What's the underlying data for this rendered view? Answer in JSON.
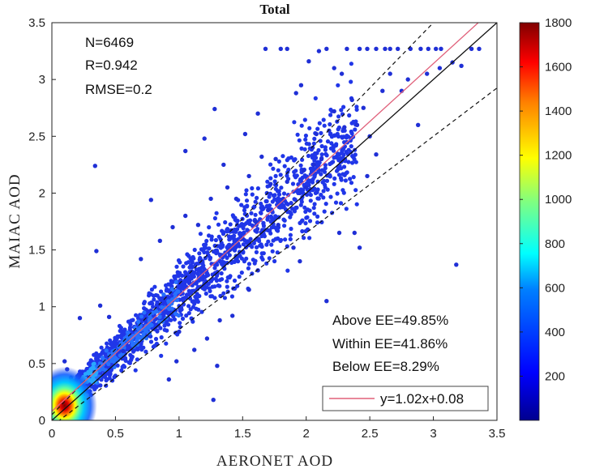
{
  "chart_data": {
    "type": "scatter",
    "title": "Total",
    "xlabel": "AERONET AOD",
    "ylabel": "MAIAC AOD",
    "xlim": [
      0,
      3.5
    ],
    "ylim": [
      0,
      3.5
    ],
    "xticks": [
      "0",
      "0.5",
      "1",
      "1.5",
      "2",
      "2.5",
      "3",
      "3.5"
    ],
    "yticks": [
      "0",
      "0.5",
      "1",
      "1.5",
      "2",
      "2.5",
      "3",
      "3.5"
    ],
    "grid": false,
    "stats": [
      "N=6469",
      "R=0.942",
      "RMSE=0.2"
    ],
    "ee_stats": [
      "Above EE=49.85%",
      "Within EE=41.86%",
      "Below EE=8.29%"
    ],
    "legend": {
      "placement": "bottom-right",
      "entries": [
        {
          "label": "y=1.02x+0.08",
          "color": "#e0607a"
        }
      ]
    },
    "fit": {
      "slope": 1.02,
      "intercept": 0.08,
      "color": "#e0607a"
    },
    "one_to_one": {
      "slope": 1,
      "intercept": 0,
      "color": "#111111"
    },
    "ee_envelope": {
      "abs": 0.05,
      "rel": 0.15,
      "style": "dashed"
    },
    "colorbar": {
      "min": 0,
      "max": 1800,
      "ticks": [
        "200",
        "400",
        "600",
        "800",
        "1000",
        "1200",
        "1400",
        "1600",
        "1800"
      ],
      "colors": [
        "#00008f",
        "#0000ff",
        "#0080ff",
        "#00ffff",
        "#80ff80",
        "#ffff00",
        "#ff8000",
        "#ff0000",
        "#800000"
      ]
    },
    "density_core": {
      "x": 0.1,
      "y": 0.13,
      "peak": 1800
    },
    "points": [
      [
        0.34,
        2.24
      ],
      [
        0.78,
        1.94
      ],
      [
        0.35,
        1.49
      ],
      [
        1.05,
        2.37
      ],
      [
        1.28,
        2.74
      ],
      [
        1.68,
        3.27
      ],
      [
        1.8,
        3.27
      ],
      [
        1.85,
        3.27
      ],
      [
        2.02,
        3.16
      ],
      [
        2.1,
        3.25
      ],
      [
        2.16,
        3.27
      ],
      [
        2.32,
        3.27
      ],
      [
        2.42,
        3.27
      ],
      [
        2.48,
        3.27
      ],
      [
        2.55,
        3.27
      ],
      [
        2.62,
        3.27
      ],
      [
        2.66,
        3.27
      ],
      [
        2.72,
        3.27
      ],
      [
        2.82,
        3.27
      ],
      [
        2.9,
        3.27
      ],
      [
        2.96,
        3.27
      ],
      [
        3.02,
        3.27
      ],
      [
        3.06,
        3.27
      ],
      [
        3.3,
        3.27
      ],
      [
        3.36,
        3.27
      ],
      [
        3.18,
        1.37
      ],
      [
        2.42,
        1.52
      ],
      [
        2.38,
        1.65
      ],
      [
        2.26,
        1.65
      ],
      [
        2.16,
        1.05
      ],
      [
        1.27,
        0.18
      ],
      [
        0.56,
        0.61
      ],
      [
        0.45,
        0.91
      ],
      [
        0.38,
        1.01
      ],
      [
        0.22,
        0.9
      ],
      [
        0.12,
        0.45
      ],
      [
        0.1,
        0.52
      ],
      [
        1.2,
        2.48
      ],
      [
        1.35,
        2.25
      ],
      [
        1.52,
        2.52
      ],
      [
        1.62,
        2.7
      ],
      [
        1.76,
        2.3
      ],
      [
        1.92,
        2.88
      ],
      [
        1.96,
        2.95
      ],
      [
        2.08,
        2.52
      ],
      [
        2.22,
        2.72
      ],
      [
        2.3,
        2.58
      ],
      [
        2.36,
        2.82
      ],
      [
        2.5,
        2.5
      ],
      [
        2.6,
        2.9
      ],
      [
        2.66,
        3.05
      ],
      [
        2.75,
        2.9
      ],
      [
        2.8,
        3.0
      ],
      [
        2.88,
        2.6
      ],
      [
        2.95,
        3.05
      ],
      [
        3.05,
        3.1
      ],
      [
        3.15,
        3.15
      ],
      [
        3.22,
        3.12
      ],
      [
        2.22,
        3.1
      ],
      [
        2.28,
        3.05
      ],
      [
        2.06,
        2.25
      ],
      [
        2.48,
        2.15
      ],
      [
        2.55,
        2.34
      ],
      [
        1.78,
        1.72
      ],
      [
        1.9,
        1.52
      ],
      [
        1.95,
        1.4
      ],
      [
        1.62,
        1.32
      ],
      [
        1.55,
        1.15
      ],
      [
        1.42,
        0.92
      ],
      [
        1.32,
        0.88
      ],
      [
        1.22,
        0.72
      ],
      [
        1.12,
        0.62
      ],
      [
        0.98,
        0.52
      ],
      [
        0.92,
        0.36
      ],
      [
        1.3,
        0.48
      ],
      [
        1.0,
        0.78
      ],
      [
        0.7,
        1.42
      ],
      [
        0.85,
        1.58
      ],
      [
        0.95,
        1.7
      ],
      [
        1.05,
        1.8
      ],
      [
        1.15,
        1.72
      ],
      [
        1.25,
        1.95
      ],
      [
        1.38,
        2.05
      ],
      [
        1.45,
        1.95
      ],
      [
        1.55,
        2.15
      ],
      [
        1.65,
        2.32
      ],
      [
        1.72,
        2.08
      ],
      [
        1.85,
        2.1
      ],
      [
        2.0,
        2.05
      ],
      [
        2.12,
        2.3
      ],
      [
        1.7,
        1.85
      ],
      [
        1.5,
        1.6
      ],
      [
        1.4,
        1.5
      ],
      [
        1.6,
        1.75
      ],
      [
        1.82,
        1.95
      ],
      [
        1.98,
        2.2
      ],
      [
        2.05,
        2.4
      ],
      [
        2.18,
        2.55
      ],
      [
        2.4,
        2.6
      ],
      [
        2.45,
        2.75
      ]
    ]
  }
}
